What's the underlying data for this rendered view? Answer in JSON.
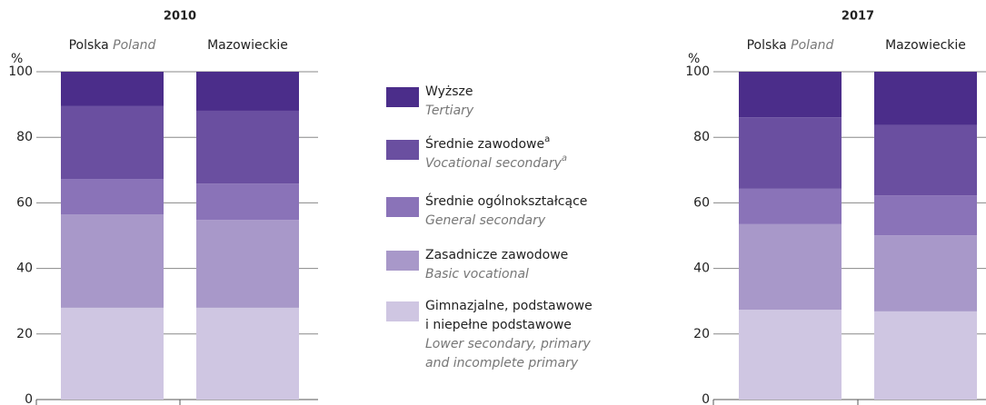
{
  "legend": [
    {
      "name": [
        "Wyższe"
      ],
      "name_en": [
        "Tertiary"
      ],
      "color": "#4b2d8a"
    },
    {
      "name": [
        "Średnie zawodowe"
      ],
      "name_en": [
        "Vocational secondary"
      ],
      "note": "a",
      "color": "#6a4fa0"
    },
    {
      "name": [
        "Średnie ogólnokształcące"
      ],
      "name_en": [
        "General secondary"
      ],
      "color": "#8a73b8"
    },
    {
      "name": [
        "Zasadnicze zawodowe"
      ],
      "name_en": [
        "Basic vocational"
      ],
      "color": "#a898c9"
    },
    {
      "name": [
        "Gimnazjalne, podstawowe",
        "i niepełne podstawowe"
      ],
      "name_en": [
        "Lower secondary, primary",
        "and incomplete primary"
      ],
      "color": "#cfc6e2"
    }
  ],
  "chart_data": [
    {
      "type": "bar",
      "stacked": true,
      "title": "2010",
      "ylabel": "%",
      "categories": [
        {
          "label": "Polska",
          "translation": "Poland"
        },
        {
          "label": "Mazowieckie"
        }
      ],
      "ylim": [
        0,
        100
      ],
      "yticks": [
        0,
        20,
        40,
        60,
        80,
        100
      ],
      "grid": true,
      "series": [
        {
          "values": [
            10.5,
            11.9
          ]
        },
        {
          "values": [
            22.2,
            22.2
          ]
        },
        {
          "values": [
            10.8,
            11.1
          ]
        },
        {
          "values": [
            28.5,
            26.8
          ]
        },
        {
          "values": [
            28,
            28
          ]
        }
      ]
    },
    {
      "type": "bar",
      "stacked": true,
      "title": "2017",
      "ylabel": "%",
      "categories": [
        {
          "label": "Polska",
          "translation": "Poland"
        },
        {
          "label": "Mazowieckie"
        }
      ],
      "ylim": [
        0,
        100
      ],
      "yticks": [
        0,
        20,
        40,
        60,
        80,
        100
      ],
      "grid": true,
      "series": [
        {
          "values": [
            13.9,
            16.3
          ]
        },
        {
          "values": [
            21.8,
            21.4
          ]
        },
        {
          "values": [
            10.8,
            12.2
          ]
        },
        {
          "values": [
            26.1,
            23.2
          ]
        },
        {
          "values": [
            27.4,
            26.9
          ]
        }
      ]
    }
  ]
}
